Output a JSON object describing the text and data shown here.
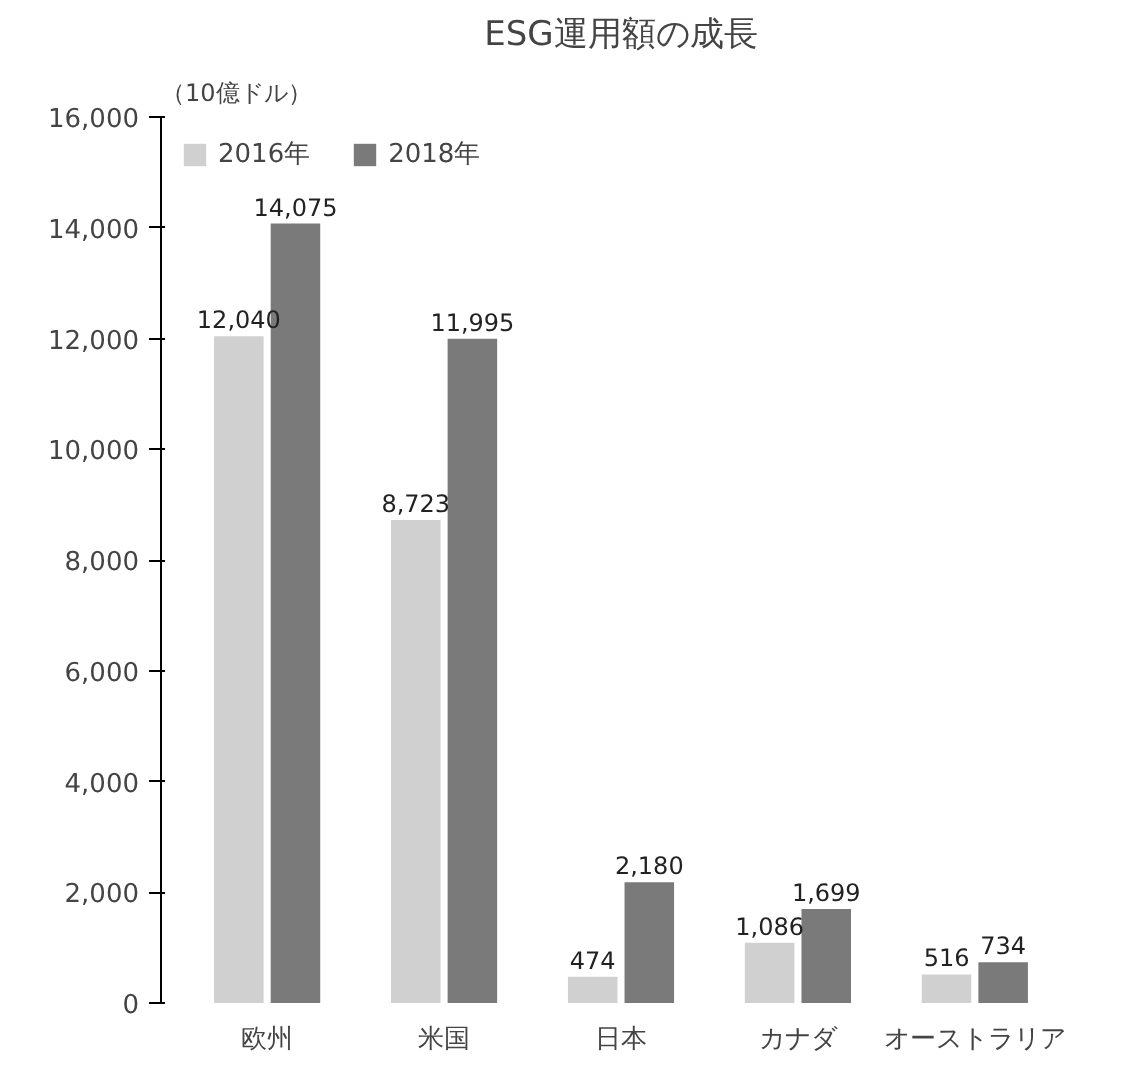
{
  "chart_data": {
    "type": "bar",
    "title": "ESG運用額の成長",
    "ylabel": "（10億ドル）",
    "categories": [
      "欧州",
      "米国",
      "日本",
      "カナダ",
      "オーストラリア"
    ],
    "series": [
      {
        "name": "2016年",
        "color": "#d0d0d0",
        "values": [
          12040,
          8723,
          474,
          1086,
          516
        ],
        "value_labels": [
          "12,040",
          "8,723",
          "474",
          "1,086",
          "516"
        ]
      },
      {
        "name": "2018年",
        "color": "#7a7a7a",
        "values": [
          14075,
          11995,
          2180,
          1699,
          734
        ],
        "value_labels": [
          "14,075",
          "11,995",
          "2,180",
          "1,699",
          "734"
        ]
      }
    ],
    "ylim": [
      0,
      16000
    ],
    "yticks": [
      {
        "value": 0,
        "label": "0"
      },
      {
        "value": 2000,
        "label": "2,000"
      },
      {
        "value": 4000,
        "label": "4,000"
      },
      {
        "value": 6000,
        "label": "6,000"
      },
      {
        "value": 8000,
        "label": "8,000"
      },
      {
        "value": 10000,
        "label": "10,000"
      },
      {
        "value": 12000,
        "label": "12,000"
      },
      {
        "value": 14000,
        "label": "14,000"
      },
      {
        "value": 16000,
        "label": "16,000"
      }
    ],
    "legend": "top left",
    "grid": false
  }
}
